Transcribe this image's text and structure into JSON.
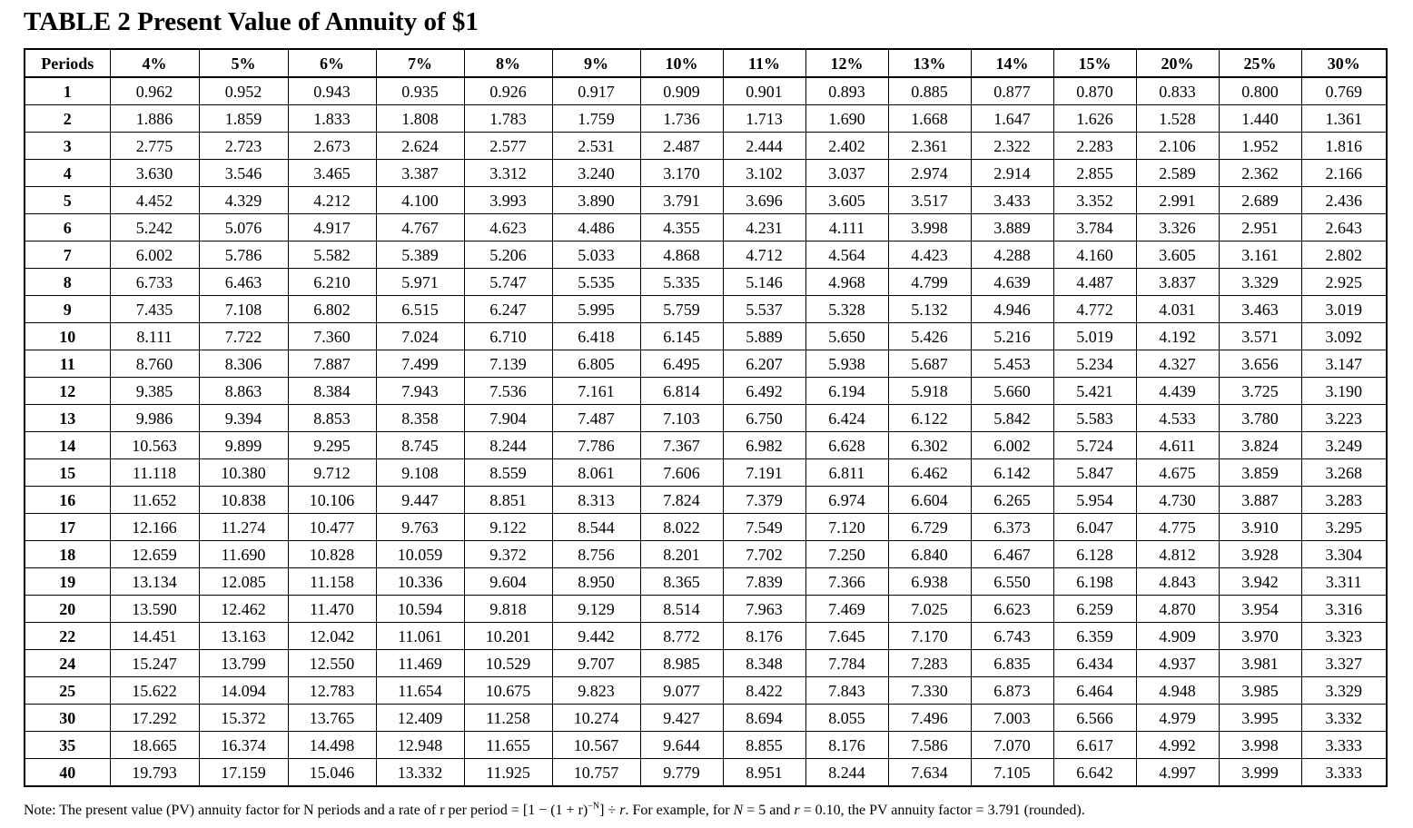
{
  "title": "TABLE 2 Present Value of Annuity of $1",
  "table": {
    "header": [
      "Periods",
      "4%",
      "5%",
      "6%",
      "7%",
      "8%",
      "9%",
      "10%",
      "11%",
      "12%",
      "13%",
      "14%",
      "15%",
      "20%",
      "25%",
      "30%"
    ],
    "rows": [
      [
        "1",
        "0.962",
        "0.952",
        "0.943",
        "0.935",
        "0.926",
        "0.917",
        "0.909",
        "0.901",
        "0.893",
        "0.885",
        "0.877",
        "0.870",
        "0.833",
        "0.800",
        "0.769"
      ],
      [
        "2",
        "1.886",
        "1.859",
        "1.833",
        "1.808",
        "1.783",
        "1.759",
        "1.736",
        "1.713",
        "1.690",
        "1.668",
        "1.647",
        "1.626",
        "1.528",
        "1.440",
        "1.361"
      ],
      [
        "3",
        "2.775",
        "2.723",
        "2.673",
        "2.624",
        "2.577",
        "2.531",
        "2.487",
        "2.444",
        "2.402",
        "2.361",
        "2.322",
        "2.283",
        "2.106",
        "1.952",
        "1.816"
      ],
      [
        "4",
        "3.630",
        "3.546",
        "3.465",
        "3.387",
        "3.312",
        "3.240",
        "3.170",
        "3.102",
        "3.037",
        "2.974",
        "2.914",
        "2.855",
        "2.589",
        "2.362",
        "2.166"
      ],
      [
        "5",
        "4.452",
        "4.329",
        "4.212",
        "4.100",
        "3.993",
        "3.890",
        "3.791",
        "3.696",
        "3.605",
        "3.517",
        "3.433",
        "3.352",
        "2.991",
        "2.689",
        "2.436"
      ],
      [
        "6",
        "5.242",
        "5.076",
        "4.917",
        "4.767",
        "4.623",
        "4.486",
        "4.355",
        "4.231",
        "4.111",
        "3.998",
        "3.889",
        "3.784",
        "3.326",
        "2.951",
        "2.643"
      ],
      [
        "7",
        "6.002",
        "5.786",
        "5.582",
        "5.389",
        "5.206",
        "5.033",
        "4.868",
        "4.712",
        "4.564",
        "4.423",
        "4.288",
        "4.160",
        "3.605",
        "3.161",
        "2.802"
      ],
      [
        "8",
        "6.733",
        "6.463",
        "6.210",
        "5.971",
        "5.747",
        "5.535",
        "5.335",
        "5.146",
        "4.968",
        "4.799",
        "4.639",
        "4.487",
        "3.837",
        "3.329",
        "2.925"
      ],
      [
        "9",
        "7.435",
        "7.108",
        "6.802",
        "6.515",
        "6.247",
        "5.995",
        "5.759",
        "5.537",
        "5.328",
        "5.132",
        "4.946",
        "4.772",
        "4.031",
        "3.463",
        "3.019"
      ],
      [
        "10",
        "8.111",
        "7.722",
        "7.360",
        "7.024",
        "6.710",
        "6.418",
        "6.145",
        "5.889",
        "5.650",
        "5.426",
        "5.216",
        "5.019",
        "4.192",
        "3.571",
        "3.092"
      ],
      [
        "11",
        "8.760",
        "8.306",
        "7.887",
        "7.499",
        "7.139",
        "6.805",
        "6.495",
        "6.207",
        "5.938",
        "5.687",
        "5.453",
        "5.234",
        "4.327",
        "3.656",
        "3.147"
      ],
      [
        "12",
        "9.385",
        "8.863",
        "8.384",
        "7.943",
        "7.536",
        "7.161",
        "6.814",
        "6.492",
        "6.194",
        "5.918",
        "5.660",
        "5.421",
        "4.439",
        "3.725",
        "3.190"
      ],
      [
        "13",
        "9.986",
        "9.394",
        "8.853",
        "8.358",
        "7.904",
        "7.487",
        "7.103",
        "6.750",
        "6.424",
        "6.122",
        "5.842",
        "5.583",
        "4.533",
        "3.780",
        "3.223"
      ],
      [
        "14",
        "10.563",
        "9.899",
        "9.295",
        "8.745",
        "8.244",
        "7.786",
        "7.367",
        "6.982",
        "6.628",
        "6.302",
        "6.002",
        "5.724",
        "4.611",
        "3.824",
        "3.249"
      ],
      [
        "15",
        "11.118",
        "10.380",
        "9.712",
        "9.108",
        "8.559",
        "8.061",
        "7.606",
        "7.191",
        "6.811",
        "6.462",
        "6.142",
        "5.847",
        "4.675",
        "3.859",
        "3.268"
      ],
      [
        "16",
        "11.652",
        "10.838",
        "10.106",
        "9.447",
        "8.851",
        "8.313",
        "7.824",
        "7.379",
        "6.974",
        "6.604",
        "6.265",
        "5.954",
        "4.730",
        "3.887",
        "3.283"
      ],
      [
        "17",
        "12.166",
        "11.274",
        "10.477",
        "9.763",
        "9.122",
        "8.544",
        "8.022",
        "7.549",
        "7.120",
        "6.729",
        "6.373",
        "6.047",
        "4.775",
        "3.910",
        "3.295"
      ],
      [
        "18",
        "12.659",
        "11.690",
        "10.828",
        "10.059",
        "9.372",
        "8.756",
        "8.201",
        "7.702",
        "7.250",
        "6.840",
        "6.467",
        "6.128",
        "4.812",
        "3.928",
        "3.304"
      ],
      [
        "19",
        "13.134",
        "12.085",
        "11.158",
        "10.336",
        "9.604",
        "8.950",
        "8.365",
        "7.839",
        "7.366",
        "6.938",
        "6.550",
        "6.198",
        "4.843",
        "3.942",
        "3.311"
      ],
      [
        "20",
        "13.590",
        "12.462",
        "11.470",
        "10.594",
        "9.818",
        "9.129",
        "8.514",
        "7.963",
        "7.469",
        "7.025",
        "6.623",
        "6.259",
        "4.870",
        "3.954",
        "3.316"
      ],
      [
        "22",
        "14.451",
        "13.163",
        "12.042",
        "11.061",
        "10.201",
        "9.442",
        "8.772",
        "8.176",
        "7.645",
        "7.170",
        "6.743",
        "6.359",
        "4.909",
        "3.970",
        "3.323"
      ],
      [
        "24",
        "15.247",
        "13.799",
        "12.550",
        "11.469",
        "10.529",
        "9.707",
        "8.985",
        "8.348",
        "7.784",
        "7.283",
        "6.835",
        "6.434",
        "4.937",
        "3.981",
        "3.327"
      ],
      [
        "25",
        "15.622",
        "14.094",
        "12.783",
        "11.654",
        "10.675",
        "9.823",
        "9.077",
        "8.422",
        "7.843",
        "7.330",
        "6.873",
        "6.464",
        "4.948",
        "3.985",
        "3.329"
      ],
      [
        "30",
        "17.292",
        "15.372",
        "13.765",
        "12.409",
        "11.258",
        "10.274",
        "9.427",
        "8.694",
        "8.055",
        "7.496",
        "7.003",
        "6.566",
        "4.979",
        "3.995",
        "3.332"
      ],
      [
        "35",
        "18.665",
        "16.374",
        "14.498",
        "12.948",
        "11.655",
        "10.567",
        "9.644",
        "8.855",
        "8.176",
        "7.586",
        "7.070",
        "6.617",
        "4.992",
        "3.998",
        "3.333"
      ],
      [
        "40",
        "19.793",
        "17.159",
        "15.046",
        "13.332",
        "11.925",
        "10.757",
        "9.779",
        "8.951",
        "8.244",
        "7.634",
        "7.105",
        "6.642",
        "4.997",
        "3.999",
        "3.333"
      ]
    ]
  },
  "note": {
    "prefix": "Note: The present value (PV) annuity factor for N periods and a rate of r per period = [1 − (1 + r)",
    "exponent": "−N",
    "formula_end": "] ÷ ",
    "r_var": "r",
    "example_text": ". For example, for ",
    "n_var": "N",
    "n_eq": " = 5 and ",
    "r_var2": "r",
    "r_eq": " = 0.10, the PV annuity factor = 3.791 (rounded)."
  }
}
